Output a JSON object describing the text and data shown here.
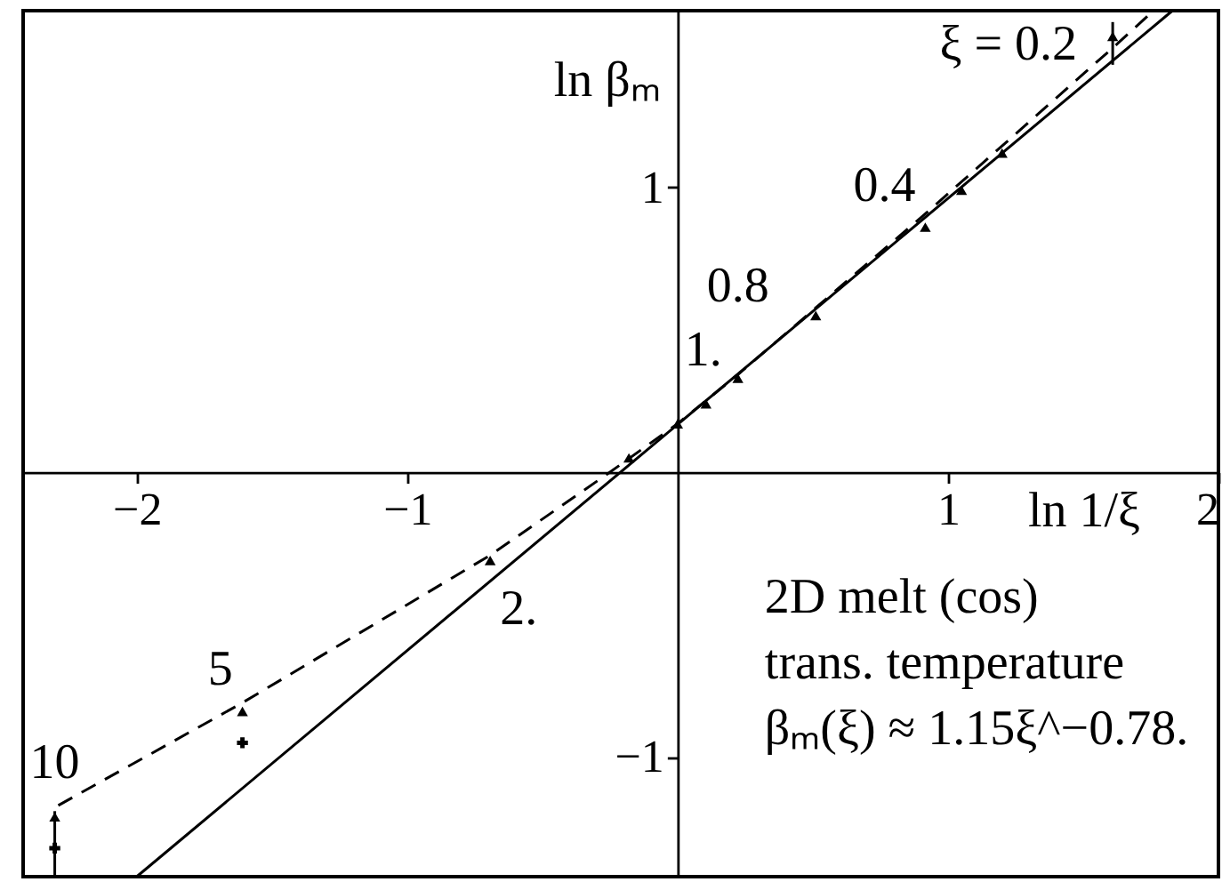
{
  "chart_data": {
    "type": "scatter",
    "xlabel": "ln 1/ξ",
    "ylabel": "ln βₘ",
    "xlim": [
      -2.42,
      2.0
    ],
    "ylim": [
      -1.42,
      1.62
    ],
    "xticks": [
      -2,
      -1,
      1,
      2
    ],
    "yticks": [
      -1,
      1
    ],
    "series": [
      {
        "type": "line",
        "line_style": "dashed",
        "marker": "none",
        "color": "#000000",
        "x": [
          -2.29,
          -1.61,
          -0.69,
          -0.25,
          0,
          0.22,
          0.92,
          1.61,
          1.76
        ],
        "values": [
          -1.17,
          -0.81,
          -0.29,
          0.0,
          0.17,
          0.34,
          0.91,
          1.49,
          1.62
        ]
      },
      {
        "type": "line",
        "line_style": "solid",
        "marker": "none",
        "color": "#000000",
        "x": [
          -2.0,
          1.83
        ],
        "values": [
          -1.42,
          1.62
        ]
      },
      {
        "marker": "triangle",
        "color": "#000000",
        "x": [
          -2.303,
          -1.609,
          -0.693,
          -0.18,
          0,
          0.105,
          0.223,
          0.511,
          0.916,
          1.05,
          1.2,
          1.609
        ],
        "values": [
          -1.21,
          -0.84,
          -0.31,
          0.05,
          0.17,
          0.24,
          0.33,
          0.55,
          0.86,
          0.99,
          1.12,
          1.53
        ],
        "errors": [
          [
            -1.42,
            -1.19
          ],
          null,
          null,
          null,
          null,
          null,
          null,
          null,
          null,
          null,
          null,
          [
            1.43,
            1.58
          ]
        ]
      },
      {
        "marker": "cross",
        "color": "#000000",
        "x": [
          -2.303,
          -1.609
        ],
        "values": [
          -1.32,
          -0.95
        ]
      }
    ],
    "annotations": [
      {
        "text": "ξ = 0.2",
        "x": 1.609,
        "y": 1.53
      },
      {
        "text": "0.4",
        "x": 0.916,
        "y": 0.86
      },
      {
        "text": "0.8",
        "x": 0.223,
        "y": 0.33
      },
      {
        "text": "1.",
        "x": 0,
        "y": 0.17
      },
      {
        "text": "2.",
        "x": -0.693,
        "y": -0.31
      },
      {
        "text": "5",
        "x": -1.609,
        "y": -0.84
      },
      {
        "text": "10",
        "x": -2.303,
        "y": -1.21
      },
      "2D melt (cos)",
      "trans. temperature",
      "βₘ(ξ) ≈ 1.15ξ^−0.78."
    ]
  }
}
